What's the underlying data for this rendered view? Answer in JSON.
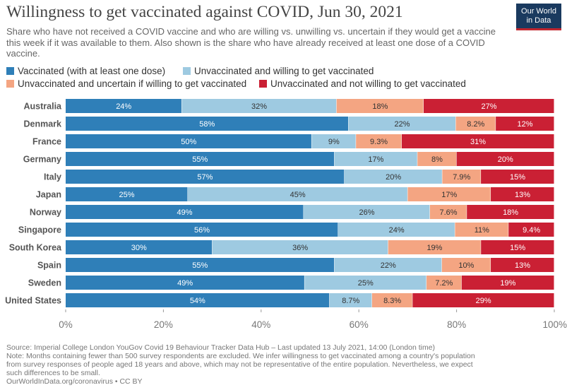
{
  "header": {
    "title": "Willingness to get vaccinated against COVID, Jun 30, 2021",
    "subtitle": "Share who have not received a COVID vaccine and who are willing vs. unwilling vs. uncertain if they would get a vaccine this week if it was available to them. Also shown is the share who have already received at least one dose of a COVID vaccine.",
    "logo_line1": "Our World",
    "logo_line2": "in Data"
  },
  "footer": {
    "source": "Source: Imperial College London YouGov Covid 19 Behaviour Tracker Data Hub – Last updated 13 July 2021, 14:00 (London time)",
    "note_line1": "Note: Months containing fewer than 500 survey respondents are excluded. We infer willingness to get vaccinated among a country's population",
    "note_line2": "from survey responses of people aged 18 years and above, which may not be representative of the entire population. Nevertheless, we expect",
    "note_line3": "such differences to be small.",
    "credit": "OurWorldInData.org/coronavirus • CC BY"
  },
  "chart_data": {
    "type": "bar",
    "orientation": "horizontal",
    "stacked": true,
    "normalized": true,
    "categories": [
      "Australia",
      "Denmark",
      "France",
      "Germany",
      "Italy",
      "Japan",
      "Norway",
      "Singapore",
      "South Korea",
      "Spain",
      "Sweden",
      "United States"
    ],
    "series": [
      {
        "name": "Vaccinated (with at least one dose)",
        "color": "#2f7fb8",
        "label_color": "#ffffff",
        "values": [
          24,
          58,
          50,
          55,
          57,
          25,
          49,
          56,
          30,
          55,
          49,
          54
        ],
        "labels": [
          "24%",
          "58%",
          "50%",
          "55%",
          "57%",
          "25%",
          "49%",
          "56%",
          "30%",
          "55%",
          "49%",
          "54%"
        ]
      },
      {
        "name": "Unvaccinated and willing to get vaccinated",
        "color": "#9ecae1",
        "label_color": "#333333",
        "values": [
          32,
          22,
          9,
          17,
          20,
          45,
          26,
          24,
          36,
          22,
          25,
          8.7
        ],
        "labels": [
          "32%",
          "22%",
          "9%",
          "17%",
          "20%",
          "45%",
          "26%",
          "24%",
          "36%",
          "22%",
          "25%",
          "8.7%"
        ]
      },
      {
        "name": "Unvaccinated and uncertain if willing to get vaccinated",
        "color": "#f4a582",
        "label_color": "#333333",
        "values": [
          18,
          8.2,
          9.3,
          8,
          7.9,
          17,
          7.6,
          11,
          19,
          10,
          7.2,
          8.3
        ],
        "labels": [
          "18%",
          "8.2%",
          "9.3%",
          "8%",
          "7.9%",
          "17%",
          "7.6%",
          "11%",
          "19%",
          "10%",
          "7.2%",
          "8.3%"
        ]
      },
      {
        "name": "Unvaccinated and not willing to get vaccinated",
        "color": "#ca2034",
        "label_color": "#ffffff",
        "values": [
          27,
          12,
          31,
          20,
          15,
          13,
          18,
          9.4,
          15,
          13,
          19,
          29
        ],
        "labels": [
          "27%",
          "12%",
          "31%",
          "20%",
          "15%",
          "13%",
          "18%",
          "9.4%",
          "15%",
          "13%",
          "19%",
          "29%"
        ]
      }
    ],
    "xlim": [
      0,
      100
    ],
    "xticks": [
      "0%",
      "20%",
      "40%",
      "60%",
      "80%",
      "100%"
    ],
    "legend_position": "top",
    "grid": false
  }
}
